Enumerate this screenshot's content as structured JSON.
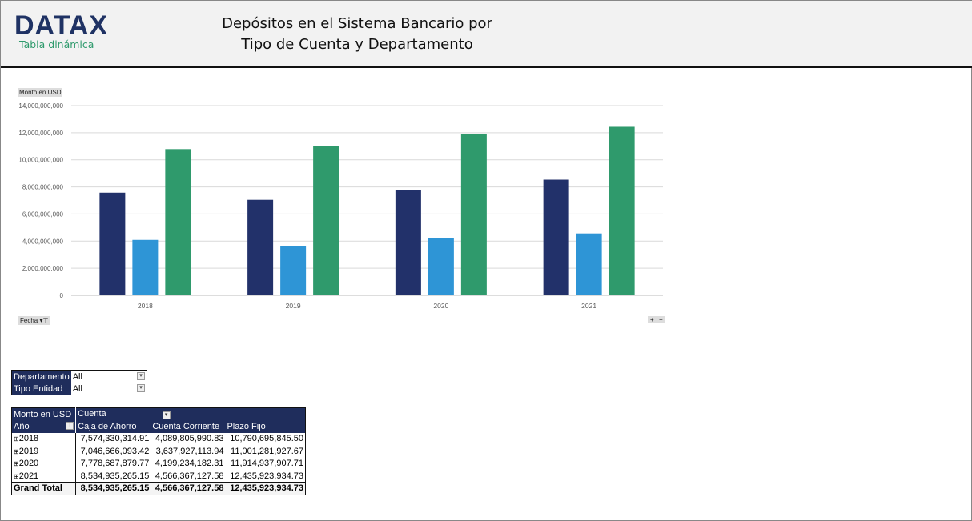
{
  "header": {
    "logo": "DATAX",
    "subtitle": "Tabla dinámica",
    "title_line1": "Depósitos en el Sistema Bancario por",
    "title_line2": "Tipo de Cuenta y Departamento"
  },
  "chart_buttons": {
    "value_field": "Monto en USD",
    "axis_field": "Fecha"
  },
  "chart_data": {
    "type": "bar",
    "categories": [
      "2018",
      "2019",
      "2020",
      "2021"
    ],
    "series": [
      {
        "values": [
          7574330314.91,
          7046666093.42,
          7778687879.77,
          8534935265.15
        ],
        "color": "#22316a"
      },
      {
        "values": [
          4089805990.83,
          3637927113.94,
          4199234182.31,
          4566367127.58
        ],
        "color": "#2e95d6"
      },
      {
        "values": [
          10790695845.5,
          11001281927.67,
          11914937907.71,
          12435923934.73
        ],
        "color": "#2f9a6c"
      }
    ],
    "ylim": [
      0,
      14000000000
    ],
    "yticks": [
      "0",
      "2,000,000,000",
      "4,000,000,000",
      "6,000,000,000",
      "8,000,000,000",
      "10,000,000,000",
      "12,000,000,000",
      "14,000,000,000"
    ],
    "grid": true
  },
  "filters": [
    {
      "label": "Departamento",
      "value": "All"
    },
    {
      "label": "Tipo Entidad",
      "value": "All"
    }
  ],
  "pivot": {
    "value_label": "Monto en USD",
    "col_field": "Cuenta",
    "row_field": "Año",
    "columns": [
      "Caja de Ahorro",
      "Cuenta Corriente",
      "Plazo Fijo"
    ],
    "rows": [
      {
        "year": "2018",
        "values": [
          "7,574,330,314.91",
          "4,089,805,990.83",
          "10,790,695,845.50"
        ]
      },
      {
        "year": "2019",
        "values": [
          "7,046,666,093.42",
          "3,637,927,113.94",
          "11,001,281,927.67"
        ]
      },
      {
        "year": "2020",
        "values": [
          "7,778,687,879.77",
          "4,199,234,182.31",
          "11,914,937,907.71"
        ]
      },
      {
        "year": "2021",
        "values": [
          "8,534,935,265.15",
          "4,566,367,127.58",
          "12,435,923,934.73"
        ]
      }
    ],
    "total_label": "Grand Total",
    "totals": [
      "8,534,935,265.15",
      "4,566,367,127.58",
      "12,435,923,934.73"
    ]
  }
}
